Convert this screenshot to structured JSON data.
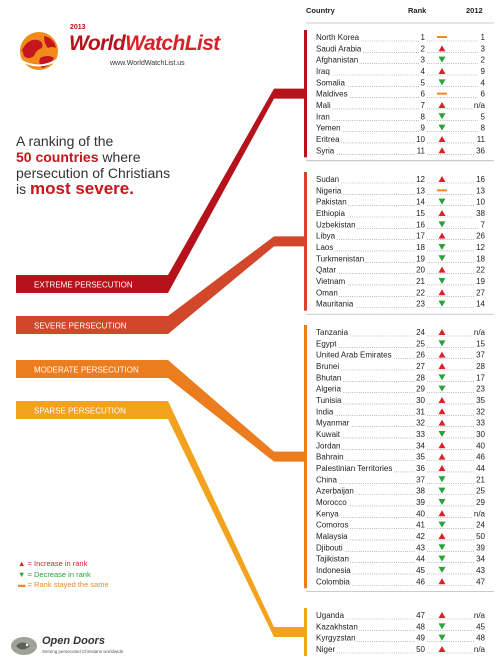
{
  "header": {
    "country": "Country",
    "rank": "Rank",
    "year": "2012"
  },
  "logo": {
    "year": "2013",
    "title_part1": "World",
    "title_part2": "WatchList",
    "url": "www.WorldWatchList.us"
  },
  "intro": {
    "line1": "A ranking of the",
    "hl1": "50 countries",
    "line2": " where",
    "line3": "persecution of Christians",
    "line4": "is ",
    "hl2": "most severe."
  },
  "legend": {
    "increase": "= Increase in rank",
    "decrease": "= Decrease in rank",
    "same": "= Rank stayed the same"
  },
  "footer": {
    "org": "Open Doors",
    "tagline": "Serving persecuted Christians worldwide"
  },
  "colors": {
    "extreme": "#b5121b",
    "severe": "#d2462a",
    "moderate": "#eb7d1e",
    "sparse": "#f3a21e",
    "up": "#d8222a",
    "down": "#2aa23a",
    "same": "#f08a1e"
  },
  "chart_data": {
    "type": "table",
    "columns": [
      "Country",
      "Rank",
      "2012"
    ],
    "categories": [
      {
        "name": "EXTREME PERSECUTION",
        "color": "#b5121b",
        "rows": [
          {
            "country": "North Korea",
            "rank": 1,
            "prev": "1",
            "change": "same"
          },
          {
            "country": "Saudi Arabia",
            "rank": 2,
            "prev": "3",
            "change": "up"
          },
          {
            "country": "Afghanistan",
            "rank": 3,
            "prev": "2",
            "change": "down"
          },
          {
            "country": "Iraq",
            "rank": 4,
            "prev": "9",
            "change": "up"
          },
          {
            "country": "Somalia",
            "rank": 5,
            "prev": "4",
            "change": "down"
          },
          {
            "country": "Maldives",
            "rank": 6,
            "prev": "6",
            "change": "same"
          },
          {
            "country": "Mali",
            "rank": 7,
            "prev": "n/a",
            "change": "up"
          },
          {
            "country": "Iran",
            "rank": 8,
            "prev": "5",
            "change": "down"
          },
          {
            "country": "Yemen",
            "rank": 9,
            "prev": "8",
            "change": "down"
          },
          {
            "country": "Eritrea",
            "rank": 10,
            "prev": "11",
            "change": "up"
          },
          {
            "country": "Syria",
            "rank": 11,
            "prev": "36",
            "change": "up"
          }
        ]
      },
      {
        "name": "SEVERE PERSECUTION",
        "color": "#d2462a",
        "rows": [
          {
            "country": "Sudan",
            "rank": 12,
            "prev": "16",
            "change": "up"
          },
          {
            "country": "Nigeria",
            "rank": 13,
            "prev": "13",
            "change": "same"
          },
          {
            "country": "Pakistan",
            "rank": 14,
            "prev": "10",
            "change": "down"
          },
          {
            "country": "Ethiopia",
            "rank": 15,
            "prev": "38",
            "change": "up"
          },
          {
            "country": "Uzbekistan",
            "rank": 16,
            "prev": "7",
            "change": "down"
          },
          {
            "country": "Libya",
            "rank": 17,
            "prev": "26",
            "change": "up"
          },
          {
            "country": "Laos",
            "rank": 18,
            "prev": "12",
            "change": "down"
          },
          {
            "country": "Turkmenistan",
            "rank": 19,
            "prev": "18",
            "change": "down"
          },
          {
            "country": "Qatar",
            "rank": 20,
            "prev": "22",
            "change": "up"
          },
          {
            "country": "Vietnam",
            "rank": 21,
            "prev": "19",
            "change": "down"
          },
          {
            "country": "Oman",
            "rank": 22,
            "prev": "27",
            "change": "up"
          },
          {
            "country": "Mauritania",
            "rank": 23,
            "prev": "14",
            "change": "down"
          }
        ]
      },
      {
        "name": "MODERATE PERSECUTION",
        "color": "#eb7d1e",
        "rows": [
          {
            "country": "Tanzania",
            "rank": 24,
            "prev": "n/a",
            "change": "up"
          },
          {
            "country": "Egypt",
            "rank": 25,
            "prev": "15",
            "change": "down"
          },
          {
            "country": "United Arab Emirates",
            "rank": 26,
            "prev": "37",
            "change": "up"
          },
          {
            "country": "Brunei",
            "rank": 27,
            "prev": "28",
            "change": "up"
          },
          {
            "country": "Bhutan",
            "rank": 28,
            "prev": "17",
            "change": "down"
          },
          {
            "country": "Algeria",
            "rank": 29,
            "prev": "23",
            "change": "down"
          },
          {
            "country": "Tunisia",
            "rank": 30,
            "prev": "35",
            "change": "up"
          },
          {
            "country": "India",
            "rank": 31,
            "prev": "32",
            "change": "up"
          },
          {
            "country": "Myanmar",
            "rank": 32,
            "prev": "33",
            "change": "up"
          },
          {
            "country": "Kuwait",
            "rank": 33,
            "prev": "30",
            "change": "down"
          },
          {
            "country": "Jordan",
            "rank": 34,
            "prev": "40",
            "change": "up"
          },
          {
            "country": "Bahrain",
            "rank": 35,
            "prev": "46",
            "change": "up"
          },
          {
            "country": "Palestinian Territories",
            "rank": 36,
            "prev": "44",
            "change": "up"
          },
          {
            "country": "China",
            "rank": 37,
            "prev": "21",
            "change": "down"
          },
          {
            "country": "Azerbaijan",
            "rank": 38,
            "prev": "25",
            "change": "down"
          },
          {
            "country": "Morocco",
            "rank": 39,
            "prev": "29",
            "change": "down"
          },
          {
            "country": "Kenya",
            "rank": 40,
            "prev": "n/a",
            "change": "up"
          },
          {
            "country": "Comoros",
            "rank": 41,
            "prev": "24",
            "change": "down"
          },
          {
            "country": "Malaysia",
            "rank": 42,
            "prev": "50",
            "change": "up"
          },
          {
            "country": "Djibouti",
            "rank": 43,
            "prev": "39",
            "change": "down"
          },
          {
            "country": "Tajikistan",
            "rank": 44,
            "prev": "34",
            "change": "down"
          },
          {
            "country": "Indonesia",
            "rank": 45,
            "prev": "43",
            "change": "down"
          },
          {
            "country": "Colombia",
            "rank": 46,
            "prev": "47",
            "change": "up"
          }
        ]
      },
      {
        "name": "SPARSE PERSECUTION",
        "color": "#f3a21e",
        "rows": [
          {
            "country": "Uganda",
            "rank": 47,
            "prev": "n/a",
            "change": "up"
          },
          {
            "country": "Kazakhstan",
            "rank": 48,
            "prev": "45",
            "change": "down"
          },
          {
            "country": "Kyrgyzstan",
            "rank": 49,
            "prev": "48",
            "change": "down"
          },
          {
            "country": "Niger",
            "rank": 50,
            "prev": "n/a",
            "change": "up"
          }
        ]
      }
    ]
  }
}
